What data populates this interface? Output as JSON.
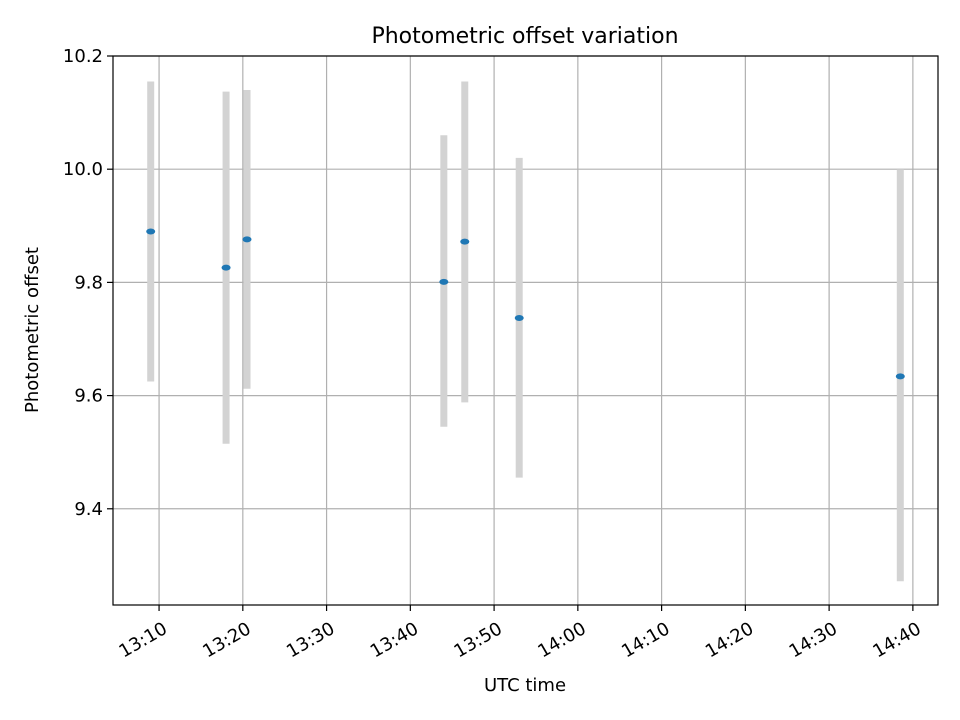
{
  "chart_data": {
    "type": "scatter",
    "title": "Photometric offset variation",
    "xlabel": "UTC time",
    "ylabel": "Photometric offset",
    "x_tick_labels": [
      "13:10",
      "13:20",
      "13:30",
      "13:40",
      "13:50",
      "14:00",
      "14:10",
      "14:20",
      "14:30",
      "14:40"
    ],
    "y_tick_labels": [
      "9.4",
      "9.6",
      "9.8",
      "10.0",
      "10.2"
    ],
    "y_ticks": [
      9.4,
      9.6,
      9.8,
      10.0,
      10.2
    ],
    "xlim": [
      "13:04:30",
      "14:43:00"
    ],
    "ylim": [
      9.23,
      10.2
    ],
    "grid": true,
    "colors": {
      "point": "#1f77b4",
      "errorbar": "#d3d3d3",
      "grid": "#b0b0b0"
    },
    "points": [
      {
        "x": "13:09:00",
        "y": 9.89,
        "err_low": 9.625,
        "err_high": 10.155
      },
      {
        "x": "13:18:00",
        "y": 9.826,
        "err_low": 9.515,
        "err_high": 10.137
      },
      {
        "x": "13:20:30",
        "y": 9.876,
        "err_low": 9.612,
        "err_high": 10.14
      },
      {
        "x": "13:44:00",
        "y": 9.801,
        "err_low": 9.545,
        "err_high": 10.06
      },
      {
        "x": "13:46:30",
        "y": 9.872,
        "err_low": 9.588,
        "err_high": 10.155
      },
      {
        "x": "13:53:00",
        "y": 9.737,
        "err_low": 9.455,
        "err_high": 10.02
      },
      {
        "x": "14:38:30",
        "y": 9.634,
        "err_low": 9.272,
        "err_high": 10.0
      }
    ]
  }
}
